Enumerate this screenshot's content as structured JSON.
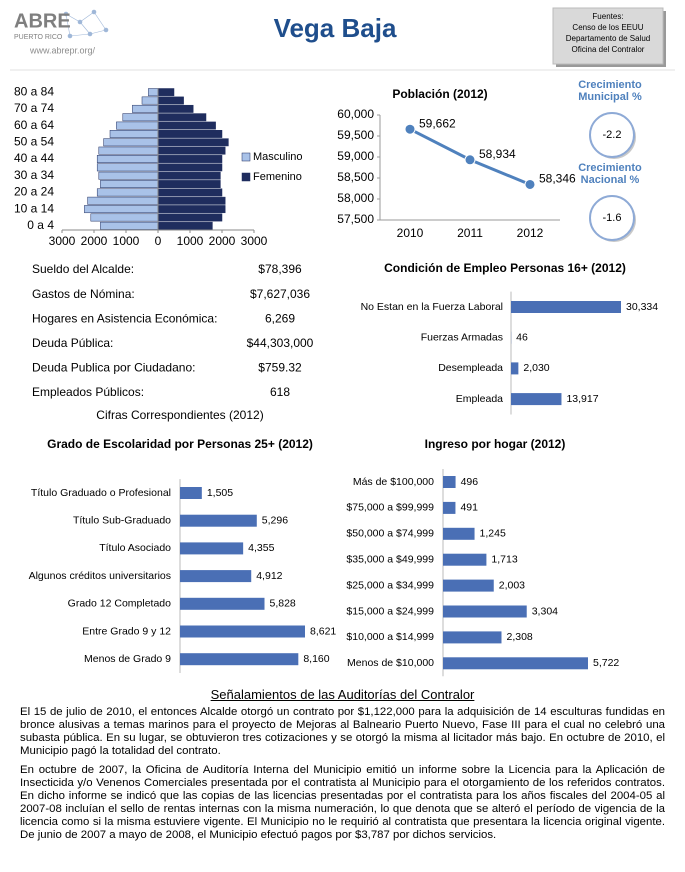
{
  "header": {
    "logo": "ABRE",
    "logo_sub": "PUERTO RICO",
    "url": "www.abrepr.org/",
    "title": "Vega Baja",
    "sources": [
      "Fuentes:",
      "Censo de los EEUU",
      "Departamento de Salud",
      "Oficina del Contralor"
    ]
  },
  "growth": [
    {
      "label": "Crecimiento Municipal %",
      "value": -2.2
    },
    {
      "label": "Crecimiento Nacional %",
      "value": -1.6
    }
  ],
  "stats": {
    "rows": [
      [
        "Sueldo del Alcalde:",
        "$78,396"
      ],
      [
        "Gastos de Nómina:",
        "$7,627,036"
      ],
      [
        "Hogares en Asistencia Económica:",
        "6,269"
      ],
      [
        "Deuda Pública:",
        "$44,303,000"
      ],
      [
        "Deuda Publica por Ciudadano:",
        "$759.32"
      ],
      [
        "Empleados Públicos:",
        "618"
      ]
    ],
    "note": "Cifras Correspondientes (2012)"
  },
  "chart_data": [
    {
      "type": "pyramid",
      "categories": [
        "0 a 4",
        null,
        "10 a 14",
        null,
        "20 a 24",
        null,
        "30 a 34",
        null,
        "40 a 44",
        null,
        "50 a 54",
        null,
        "60 a 64",
        null,
        "70 a 74",
        null,
        "80 a 84"
      ],
      "series": [
        {
          "name": "Masculino",
          "color": "#a9c2e8",
          "values": [
            -1800,
            -2100,
            -2300,
            -2200,
            -1900,
            -1800,
            -1850,
            -1900,
            -1900,
            -1850,
            -1700,
            -1500,
            -1300,
            -1100,
            -800,
            -500,
            -300
          ]
        },
        {
          "name": "Femenino",
          "color": "#1f2d5e",
          "values": [
            1700,
            2000,
            2100,
            2100,
            2000,
            1950,
            1950,
            2000,
            2000,
            2100,
            2200,
            2000,
            1800,
            1500,
            1100,
            800,
            500
          ]
        }
      ],
      "xlim": [
        -3000,
        3000
      ],
      "xticks": [
        {
          "value": -3000,
          "label": "3000"
        },
        {
          "value": -2000,
          "label": "2000"
        },
        {
          "value": -1000,
          "label": "1000"
        },
        0,
        1000,
        2000,
        3000
      ],
      "legend": "right"
    },
    {
      "type": "line",
      "title": "Población (2012)",
      "categories": [
        "2010",
        "2011",
        "2012"
      ],
      "values": [
        59662,
        58934,
        58346
      ],
      "value_labels": [
        "59,662",
        "58,934",
        "58,346"
      ],
      "color": "#4f81bd",
      "ylim": [
        57500,
        60000
      ],
      "yticks": [
        {
          "value": 57500,
          "label": "57,500"
        },
        {
          "value": 58000,
          "label": "58,000"
        },
        {
          "value": 58500,
          "label": "58,500"
        },
        {
          "value": 59000,
          "label": "59,000"
        },
        {
          "value": 59500,
          "label": "59,500"
        },
        {
          "value": 60000,
          "label": "60,000"
        }
      ]
    },
    {
      "type": "bar",
      "title": "Condición de Empleo Personas 16+ (2012)",
      "categories": [
        "No Estan en la Fuerza Laboral",
        "Fuerzas Armadas",
        "Desempleada",
        "Empleada"
      ],
      "values": [
        30334,
        46,
        2030,
        13917
      ],
      "value_labels": [
        "30,334",
        "46",
        "2,030",
        "13,917"
      ],
      "color": "#4a6fb5"
    },
    {
      "type": "bar",
      "title": "Grado de Escolaridad por Personas 25+ (2012)",
      "categories": [
        "Título Graduado o Profesional",
        "Título Sub-Graduado",
        "Título Asociado",
        "Algunos créditos universitarios",
        "Grado 12 Completado",
        "Entre Grado 9 y 12",
        "Menos de  Grado 9"
      ],
      "values": [
        1505,
        5296,
        4355,
        4912,
        5828,
        8621,
        8160
      ],
      "value_labels": [
        "1,505",
        "5,296",
        "4,355",
        "4,912",
        "5,828",
        "8,621",
        "8,160"
      ],
      "color": "#4a6fb5"
    },
    {
      "type": "bar",
      "title": "Ingreso por hogar (2012)",
      "categories": [
        "Más de $100,000",
        "$75,000 a $99,999",
        "$50,000 a $74,999",
        "$35,000 a $49,999",
        "$25,000 a $34,999",
        "$15,000 a $24,999",
        "$10,000 a $14,999",
        "Menos de $10,000"
      ],
      "values": [
        496,
        491,
        1245,
        1713,
        2003,
        3304,
        2308,
        5722
      ],
      "value_labels": [
        "496",
        "491",
        "1,245",
        "1,713",
        "2,003",
        "3,304",
        "2,308",
        "5,722"
      ],
      "color": "#4a6fb5"
    }
  ],
  "audit": {
    "title": "Señalamientos de las Auditorías del Contralor",
    "paragraphs": [
      "El 15 de julio de 2010, el entonces Alcalde otorgó un contrato por $1,122,000 para la adquisición de 14 esculturas fundidas en bronce alusivas a temas marinos para el proyecto de Mejoras al Balneario Puerto Nuevo, Fase III para el cual no celebró una subasta pública. En su lugar, se obtuvieron tres cotizaciones y se otorgó la misma al licitador más bajo. En octubre de 2010, el Municipio pagó la totalidad del contrato.",
      "En octubre de 2007, la Oficina de Auditoría Interna del Municipio emitió un informe sobre la Licencia para la Aplicación de Insecticida y/o Venenos Comerciales presentada por el contratista al Municipio para el otorgamiento de los referidos contratos. En dicho informe se indicó que las copias de las licencias presentadas por el contratista para los años fiscales del 2004-05 al 2007-08 incluían el sello de rentas internas con la misma numeración, lo que denota que se alteró el período de vigencia de la licencia como si la misma estuviere vigente. El Municipio no le requirió al contratista que presentara la licencia original vigente. De junio de 2007 a mayo de 2008, el Municipio efectuó pagos por $3,787 por dichos servicios."
    ]
  }
}
